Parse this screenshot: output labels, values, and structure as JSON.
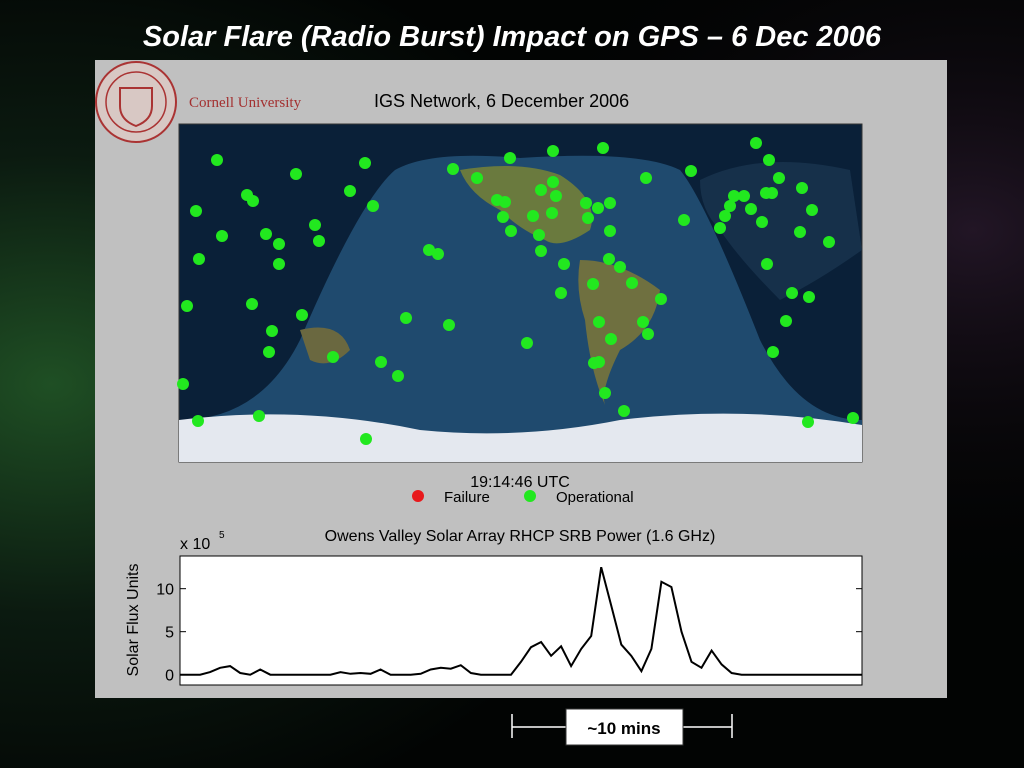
{
  "title": "Solar Flare (Radio Burst) Impact on GPS – 6 Dec 2006",
  "panel": {
    "institution": "Cornell University",
    "map_title": "IGS Network, 6 December 2006",
    "time": "19:14:46 UTC",
    "legend": [
      {
        "label": "Failure",
        "color": "#e8191c"
      },
      {
        "label": "Operational",
        "color": "#22e81f"
      }
    ]
  },
  "chart_data": {
    "type": "line",
    "title": "Owens Valley Solar Array RHCP SRB Power (1.6 GHz)",
    "y_label": "Solar Flux Units",
    "multiplier": "x 10",
    "multiplier_exponent": "5",
    "ylim": [
      -1.2,
      13.8
    ],
    "yticks": [
      0,
      5,
      10
    ],
    "color": "#000000",
    "values": [
      0,
      0,
      0,
      0.3,
      0.8,
      1.0,
      0.2,
      0,
      0.6,
      0,
      0,
      0,
      0,
      0,
      0,
      0,
      0.3,
      0.1,
      0.2,
      0.1,
      0.6,
      0,
      0,
      0,
      0.1,
      0.6,
      0.8,
      0.7,
      1.1,
      0.2,
      0,
      0,
      0,
      0,
      1.5,
      3.2,
      3.8,
      2.2,
      3.3,
      1.0,
      3.0,
      4.5,
      12.5,
      8.0,
      3.5,
      2.2,
      0.4,
      3.0,
      10.8,
      10.2,
      5.0,
      1.5,
      0.8,
      2.8,
      1.2,
      0.2,
      0,
      0,
      0,
      0,
      0,
      0,
      0,
      0,
      0,
      0,
      0,
      0,
      0
    ]
  },
  "annotation": "~10 mins"
}
